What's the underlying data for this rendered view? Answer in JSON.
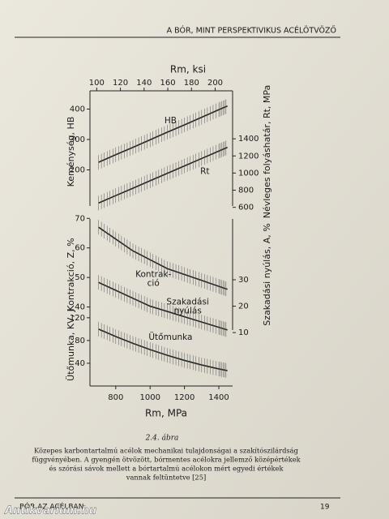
{
  "header": {
    "title": "A BÓR, MINT PERSPEKTIVIKUS ACÉLÖTVÖZŐ"
  },
  "chart_data": [
    {
      "type": "line",
      "x2_label": "Rm, ksi",
      "y_label": "Keménység, HB",
      "y2_label": "Névleges folyáshatár, Rt, MPa",
      "xlim": [
        650,
        1480
      ],
      "x2lim": [
        94.3,
        214.7
      ],
      "x2ticks": [
        100,
        120,
        140,
        160,
        180,
        200
      ],
      "ylim": [
        60,
        460
      ],
      "yticks": [
        200,
        300,
        400
      ],
      "y2lim": [
        540,
        1960
      ],
      "y2ticks": [
        600,
        800,
        1000,
        1200,
        1400
      ],
      "x": [
        700,
        800,
        900,
        1000,
        1100,
        1200,
        1300,
        1400,
        1450
      ],
      "series": [
        {
          "label_lines": [
            "HB"
          ],
          "color": "#222222",
          "values": [
            225,
            250,
            274,
            299,
            324,
            348,
            373,
            398,
            410
          ]
        },
        {
          "label_lines": [
            "Rt"
          ],
          "color": "#222222",
          "axis": "y2",
          "values": [
            650,
            737,
            823,
            910,
            997,
            1083,
            1170,
            1257,
            1300
          ]
        }
      ]
    },
    {
      "type": "line",
      "y_label": "Kontrakció, Z, %",
      "y2_label": "Szakadási nyúlás, A, %",
      "xlim": [
        650,
        1480
      ],
      "ylim": [
        30,
        72
      ],
      "yticks": [
        40,
        50,
        60,
        70
      ],
      "y2lim": [
        8.5,
        55.5
      ],
      "y2ticks": [
        10,
        20,
        30
      ],
      "x": [
        700,
        800,
        900,
        1000,
        1100,
        1200,
        1300,
        1400,
        1450
      ],
      "series": [
        {
          "label_lines": [
            "Kontrak-",
            "ció"
          ],
          "color": "#222222",
          "values": [
            67,
            63,
            59,
            56,
            53,
            51,
            49,
            47,
            46
          ]
        },
        {
          "label_lines": [
            "Szakadási",
            "nyúlás"
          ],
          "color": "#222222",
          "axis": "y2",
          "values": [
            29,
            26,
            23,
            20,
            18,
            16,
            14,
            12,
            11
          ]
        }
      ]
    },
    {
      "type": "line",
      "y_label": "Ütőmunka, KV, J",
      "x_label": "Rm, MPa",
      "xlim": [
        650,
        1480
      ],
      "xticks": [
        800,
        1000,
        1200,
        1400
      ],
      "ylim": [
        0,
        144
      ],
      "yticks": [
        40,
        80,
        120
      ],
      "x": [
        700,
        800,
        900,
        1000,
        1100,
        1200,
        1300,
        1400,
        1450
      ],
      "series": [
        {
          "label_lines": [
            "Ütőmunka"
          ],
          "color": "#222222",
          "values": [
            100,
            87,
            75,
            64,
            54,
            45,
            37,
            30,
            27
          ]
        }
      ]
    }
  ],
  "caption": {
    "number": "2.4. ábra",
    "lines": [
      "Közepes karbontartalmú acélok mechanikai tulajdonságai a szakítószilárdság",
      "függvényében. A gyengén ötvözött, bórmentes acélokra jellemző középértékek",
      "és szórási sávok mellett a bórtartalmú acélokon mért egyedi értékek",
      "vannak feltüntetve [25]"
    ]
  },
  "footer": {
    "left": "BÓR AZ ACÉLBAN",
    "page": "19"
  },
  "watermark": "Antikvarium.hu"
}
